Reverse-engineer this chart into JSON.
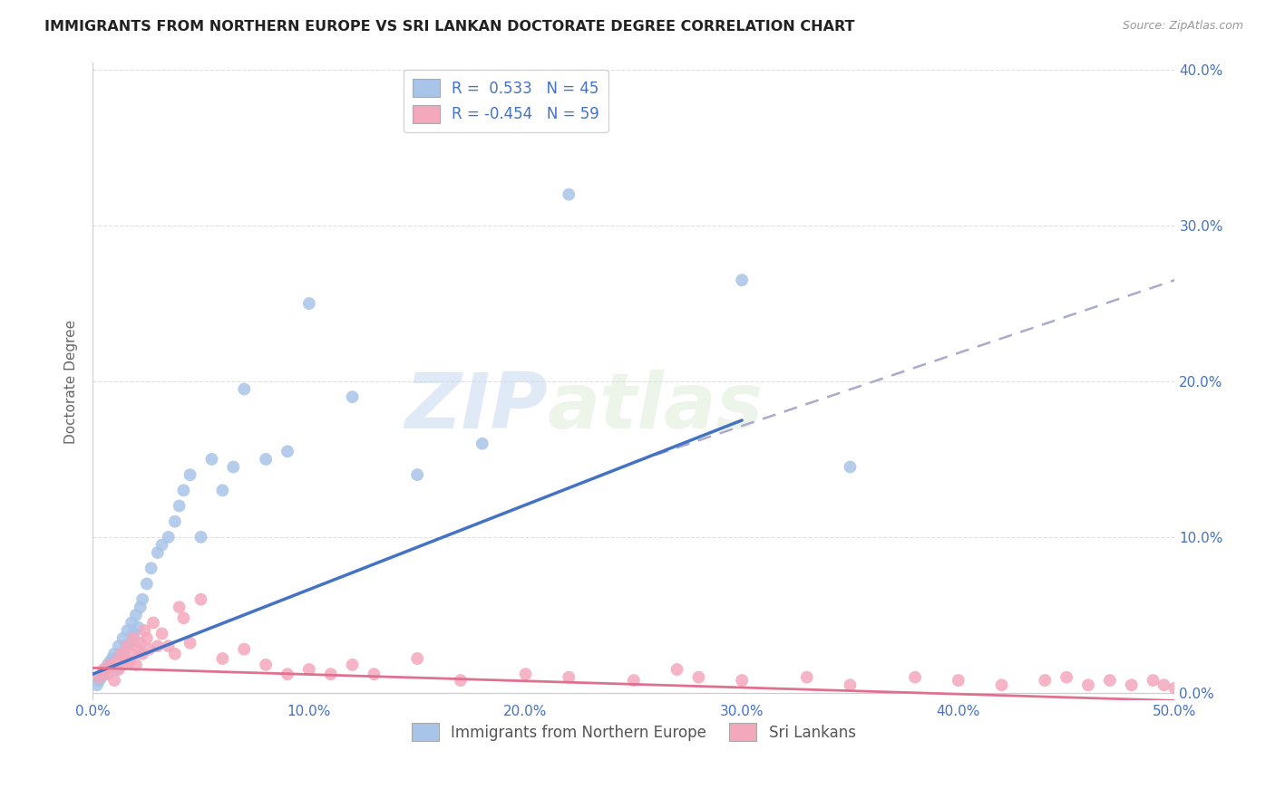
{
  "title": "IMMIGRANTS FROM NORTHERN EUROPE VS SRI LANKAN DOCTORATE DEGREE CORRELATION CHART",
  "source": "Source: ZipAtlas.com",
  "ylabel": "Doctorate Degree",
  "xlim": [
    0.0,
    0.5
  ],
  "ylim": [
    -0.005,
    0.405
  ],
  "xticks": [
    0.0,
    0.1,
    0.2,
    0.3,
    0.4,
    0.5
  ],
  "yticks": [
    0.0,
    0.1,
    0.2,
    0.3,
    0.4
  ],
  "ytick_labels_right": [
    "0.0%",
    "10.0%",
    "20.0%",
    "30.0%",
    "40.0%"
  ],
  "xtick_labels": [
    "0.0%",
    "10.0%",
    "20.0%",
    "30.0%",
    "40.0%",
    "50.0%"
  ],
  "blue_color": "#a8c4e8",
  "pink_color": "#f4a8bc",
  "blue_line_color": "#4472c4",
  "pink_line_color": "#e07090",
  "gray_dash_color": "#aaaacc",
  "legend_R1": "R =  0.533",
  "legend_N1": "N = 45",
  "legend_R2": "R = -0.454",
  "legend_N2": "N = 59",
  "legend_label1": "Immigrants from Northern Europe",
  "legend_label2": "Sri Lankans",
  "watermark_zip": "ZIP",
  "watermark_atlas": "atlas",
  "background_color": "#ffffff",
  "grid_color": "#e0e0e0",
  "title_fontsize": 11.5,
  "blue_line_x_start": 0.0,
  "blue_line_x_end": 0.3,
  "blue_line_y_start": 0.012,
  "blue_line_y_end": 0.175,
  "gray_line_x_start": 0.25,
  "gray_line_x_end": 0.5,
  "gray_line_y_start": 0.148,
  "gray_line_y_end": 0.265,
  "pink_line_x_start": 0.0,
  "pink_line_x_end": 0.5,
  "pink_line_y_start": 0.016,
  "pink_line_y_end": -0.005,
  "blue_scatter_x": [
    0.002,
    0.003,
    0.004,
    0.005,
    0.006,
    0.007,
    0.008,
    0.009,
    0.01,
    0.011,
    0.012,
    0.013,
    0.014,
    0.015,
    0.016,
    0.017,
    0.018,
    0.019,
    0.02,
    0.021,
    0.022,
    0.023,
    0.025,
    0.027,
    0.03,
    0.032,
    0.035,
    0.038,
    0.04,
    0.042,
    0.045,
    0.05,
    0.055,
    0.06,
    0.065,
    0.07,
    0.08,
    0.09,
    0.1,
    0.12,
    0.15,
    0.18,
    0.22,
    0.3,
    0.35
  ],
  "blue_scatter_y": [
    0.005,
    0.008,
    0.01,
    0.012,
    0.015,
    0.018,
    0.02,
    0.022,
    0.025,
    0.015,
    0.03,
    0.025,
    0.035,
    0.028,
    0.04,
    0.032,
    0.045,
    0.038,
    0.05,
    0.042,
    0.055,
    0.06,
    0.07,
    0.08,
    0.09,
    0.095,
    0.1,
    0.11,
    0.12,
    0.13,
    0.14,
    0.1,
    0.15,
    0.13,
    0.145,
    0.195,
    0.15,
    0.155,
    0.25,
    0.19,
    0.14,
    0.16,
    0.32,
    0.265,
    0.145
  ],
  "pink_scatter_x": [
    0.003,
    0.005,
    0.007,
    0.008,
    0.01,
    0.011,
    0.012,
    0.013,
    0.014,
    0.015,
    0.016,
    0.017,
    0.018,
    0.019,
    0.02,
    0.021,
    0.022,
    0.023,
    0.024,
    0.025,
    0.026,
    0.028,
    0.03,
    0.032,
    0.035,
    0.038,
    0.04,
    0.045,
    0.05,
    0.06,
    0.07,
    0.08,
    0.09,
    0.1,
    0.11,
    0.12,
    0.13,
    0.15,
    0.17,
    0.2,
    0.22,
    0.25,
    0.28,
    0.3,
    0.33,
    0.35,
    0.38,
    0.4,
    0.42,
    0.44,
    0.45,
    0.46,
    0.47,
    0.48,
    0.49,
    0.495,
    0.5,
    0.27,
    0.042
  ],
  "pink_scatter_y": [
    0.01,
    0.015,
    0.012,
    0.018,
    0.008,
    0.02,
    0.015,
    0.025,
    0.018,
    0.022,
    0.03,
    0.02,
    0.025,
    0.035,
    0.018,
    0.028,
    0.032,
    0.025,
    0.04,
    0.035,
    0.028,
    0.045,
    0.03,
    0.038,
    0.03,
    0.025,
    0.055,
    0.032,
    0.06,
    0.022,
    0.028,
    0.018,
    0.012,
    0.015,
    0.012,
    0.018,
    0.012,
    0.022,
    0.008,
    0.012,
    0.01,
    0.008,
    0.01,
    0.008,
    0.01,
    0.005,
    0.01,
    0.008,
    0.005,
    0.008,
    0.01,
    0.005,
    0.008,
    0.005,
    0.008,
    0.005,
    0.003,
    0.015,
    0.048
  ]
}
